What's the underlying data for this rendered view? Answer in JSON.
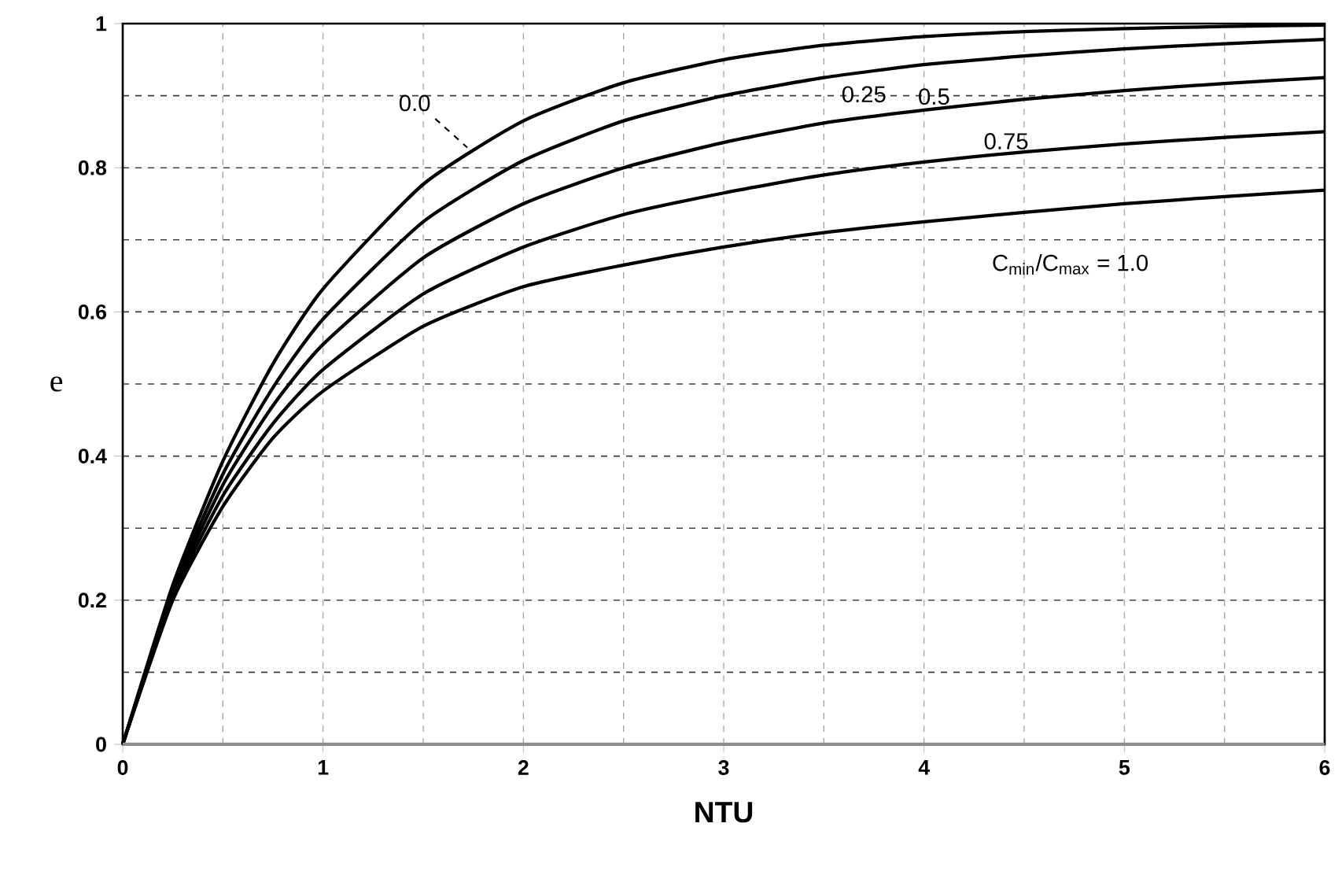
{
  "chart_data": {
    "type": "line",
    "xlabel": "NTU",
    "ylabel": "e",
    "x": [
      0,
      0.25,
      0.5,
      0.75,
      1,
      1.5,
      2,
      2.5,
      3,
      3.5,
      4,
      4.5,
      5,
      5.5,
      6
    ],
    "series": [
      {
        "name": "0.0",
        "color": "#000000",
        "values": [
          0,
          0.221,
          0.393,
          0.528,
          0.632,
          0.777,
          0.865,
          0.918,
          0.95,
          0.97,
          0.982,
          0.989,
          0.993,
          0.996,
          0.998
        ]
      },
      {
        "name": "0.25",
        "color": "#000000",
        "values": [
          0,
          0.215,
          0.375,
          0.495,
          0.59,
          0.725,
          0.81,
          0.865,
          0.9,
          0.925,
          0.943,
          0.955,
          0.965,
          0.972,
          0.978
        ]
      },
      {
        "name": "0.5",
        "color": "#000000",
        "values": [
          0,
          0.21,
          0.36,
          0.47,
          0.555,
          0.675,
          0.75,
          0.8,
          0.835,
          0.862,
          0.88,
          0.895,
          0.907,
          0.917,
          0.925
        ]
      },
      {
        "name": "0.75",
        "color": "#000000",
        "values": [
          0,
          0.205,
          0.345,
          0.445,
          0.52,
          0.625,
          0.69,
          0.735,
          0.765,
          0.79,
          0.808,
          0.822,
          0.833,
          0.842,
          0.85
        ]
      },
      {
        "name": "C$_{min}$/C$_{max}$ = 1.0",
        "color": "#000000",
        "values": [
          0,
          0.2,
          0.33,
          0.425,
          0.49,
          0.58,
          0.635,
          0.665,
          0.69,
          0.71,
          0.725,
          0.738,
          0.75,
          0.76,
          0.769
        ]
      }
    ],
    "xlim": [
      0,
      6
    ],
    "ylim": [
      0,
      1
    ],
    "xticks": [
      0,
      1,
      2,
      3,
      4,
      5,
      6
    ],
    "yticks": [
      0,
      0.2,
      0.4,
      0.6,
      0.8,
      1
    ],
    "grid": true,
    "marker": "none",
    "line_style": "solid"
  }
}
